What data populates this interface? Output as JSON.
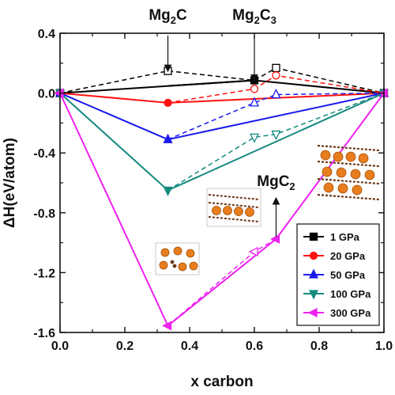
{
  "chart_data": {
    "type": "line",
    "xlabel": "x carbon",
    "ylabel": "ΔH(eV/atom)",
    "xlim": [
      0.0,
      1.0
    ],
    "ylim": [
      -1.6,
      0.4
    ],
    "xticks": [
      0.0,
      0.2,
      0.4,
      0.6,
      0.8,
      1.0
    ],
    "xtick_labels": [
      "0.0",
      "0.2",
      "0.4",
      "0.6",
      "0.8",
      "1.0"
    ],
    "yticks": [
      -1.6,
      -1.2,
      -0.8,
      -0.4,
      0.0,
      0.4
    ],
    "ytick_labels": [
      "-1.6",
      "-1.2",
      "-0.8",
      "-0.4",
      "0.0",
      "0.4"
    ],
    "grid": false,
    "legend_position": "bottom-right",
    "series": [
      {
        "name": "1 GPa",
        "color": "#000000",
        "marker": "square",
        "hull": [
          [
            0.0,
            0.0
          ],
          [
            0.6,
            0.085
          ],
          [
            1.0,
            0.0
          ]
        ],
        "tie": [
          [
            0.333,
            0.048
          ],
          [
            0.6,
            0.085
          ]
        ],
        "metastable": [
          [
            0.0,
            0.0
          ],
          [
            0.333,
            0.148
          ],
          [
            0.6,
            0.085
          ],
          [
            0.667,
            0.168
          ],
          [
            1.0,
            0.0
          ]
        ]
      },
      {
        "name": "20 GPa",
        "color": "#ff1111",
        "marker": "circle",
        "hull": [
          [
            0.0,
            0.0
          ],
          [
            0.333,
            -0.065
          ],
          [
            1.0,
            0.0
          ]
        ],
        "metastable": [
          [
            0.333,
            -0.065
          ],
          [
            0.6,
            0.028
          ],
          [
            0.667,
            0.118
          ],
          [
            1.0,
            0.0
          ]
        ]
      },
      {
        "name": "50 GPa",
        "color": "#1a1aee",
        "marker": "triangle-up",
        "hull": [
          [
            0.0,
            0.0
          ],
          [
            0.333,
            -0.31
          ],
          [
            1.0,
            0.0
          ]
        ],
        "metastable": [
          [
            0.333,
            -0.31
          ],
          [
            0.6,
            -0.065
          ],
          [
            0.667,
            -0.01
          ],
          [
            1.0,
            0.0
          ]
        ]
      },
      {
        "name": "100 GPa",
        "color": "#148a7e",
        "marker": "triangle-down",
        "hull": [
          [
            0.0,
            0.0
          ],
          [
            0.333,
            -0.65
          ],
          [
            1.0,
            0.0
          ]
        ],
        "metastable": [
          [
            0.333,
            -0.65
          ],
          [
            0.6,
            -0.295
          ],
          [
            0.667,
            -0.275
          ],
          [
            1.0,
            0.0
          ]
        ]
      },
      {
        "name": "300 GPa",
        "color": "#ee22ee",
        "marker": "triangle-left",
        "hull": [
          [
            0.0,
            0.0
          ],
          [
            0.333,
            -1.555
          ],
          [
            0.667,
            -0.975
          ],
          [
            1.0,
            0.0
          ]
        ],
        "metastable": [
          [
            0.333,
            -1.555
          ],
          [
            0.6,
            -1.06
          ],
          [
            0.667,
            -0.975
          ]
        ]
      }
    ],
    "annotations": [
      {
        "id": "mg2c",
        "main": "Mg",
        "sub": "2",
        "tail": "C",
        "tail_sub": "",
        "x": 0.333,
        "y_text": 0.49,
        "arrow_from": 0.385,
        "arrow_to": 0.165
      },
      {
        "id": "mg2c3",
        "main": "Mg",
        "sub": "2",
        "tail": "C",
        "tail_sub": "3",
        "x": 0.6,
        "y_text": 0.49,
        "arrow_from": 0.385,
        "arrow_to": 0.1
      },
      {
        "id": "mgc2",
        "main": "MgC",
        "sub": "2",
        "tail": "",
        "tail_sub": "",
        "x": 0.667,
        "y_text": -0.62,
        "arrow_from": -0.96,
        "arrow_to": -0.72
      }
    ]
  }
}
